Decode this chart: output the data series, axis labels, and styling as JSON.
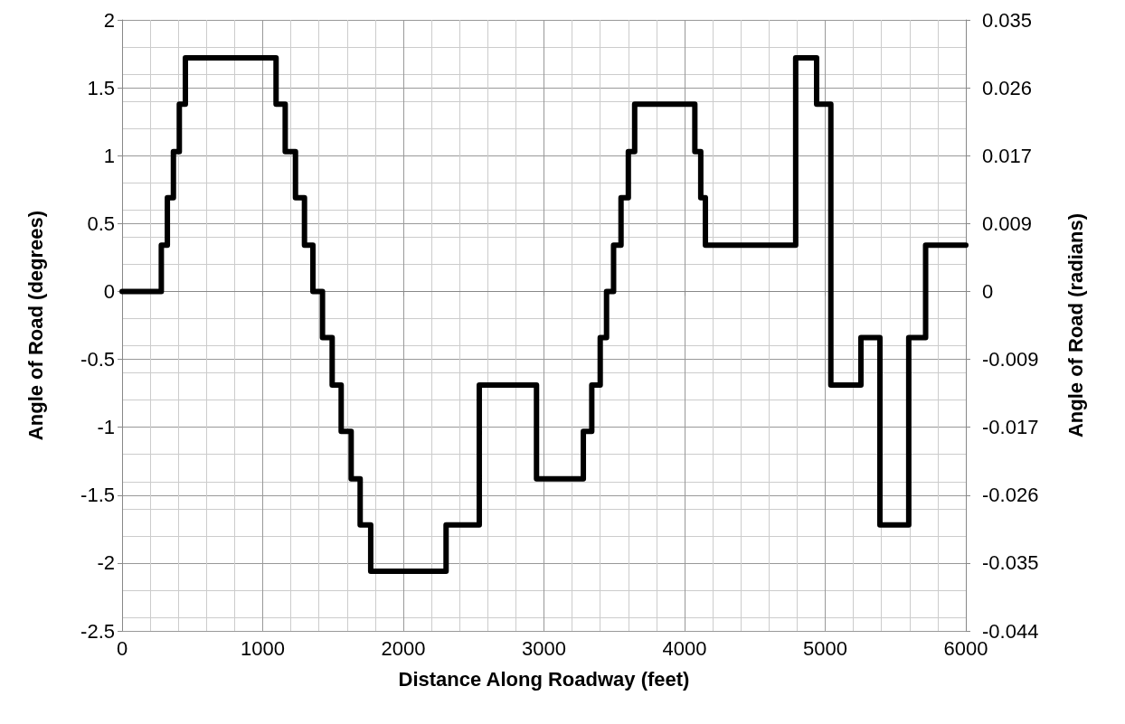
{
  "chart_data": {
    "type": "step",
    "xlabel": "Distance Along Roadway (feet)",
    "ylabel": "Angle of Road (degrees)",
    "y2label": "Angle of Road (radians)",
    "series": [
      {
        "color": "#000000",
        "x": [
          0,
          279,
          322,
          365,
          407,
          450,
          1095,
          1160,
          1233,
          1297,
          1357,
          1425,
          1494,
          1558,
          1629,
          1693,
          1768,
          2304,
          2540,
          2947,
          3280,
          3340,
          3400,
          3445,
          3495,
          3548,
          3600,
          3645,
          4073,
          4115,
          4148,
          4790,
          4939,
          5040,
          5254,
          5389,
          5594,
          5714,
          6000
        ],
        "values": [
          0,
          0.34,
          0.69,
          1.03,
          1.38,
          1.72,
          1.38,
          1.03,
          0.69,
          0.34,
          0,
          -0.34,
          -0.69,
          -1.03,
          -1.38,
          -1.72,
          -2.06,
          -1.72,
          -0.69,
          -1.38,
          -1.03,
          -0.69,
          -0.34,
          0,
          0.34,
          0.69,
          1.03,
          1.38,
          1.03,
          0.69,
          0.34,
          1.72,
          1.38,
          -0.69,
          -0.34,
          -1.72,
          -0.34,
          0.34,
          0.34
        ]
      }
    ],
    "xlim": [
      0,
      6000
    ],
    "xticks": [
      0,
      1000,
      2000,
      3000,
      4000,
      5000,
      6000
    ],
    "ylim": [
      -2.5,
      2
    ],
    "yticks": [
      -2.5,
      -2,
      -1.5,
      -1,
      -0.5,
      0,
      0.5,
      1,
      1.5,
      2
    ],
    "y2lim": [
      -0.04363,
      0.03491
    ],
    "y2ticks": [
      {
        "value": -0.04363,
        "label": "-0.044"
      },
      {
        "value": -0.03491,
        "label": "-0.035"
      },
      {
        "value": -0.02618,
        "label": "-0.026"
      },
      {
        "value": -0.01745,
        "label": "-0.017"
      },
      {
        "value": -0.00873,
        "label": "-0.009"
      },
      0,
      {
        "value": 0.00873,
        "label": "0.009"
      },
      {
        "value": 0.01745,
        "label": "0.017"
      },
      {
        "value": 0.02618,
        "label": "0.026"
      },
      {
        "value": 0.03491,
        "label": "0.035"
      }
    ],
    "grid": true,
    "marker": "none",
    "line_style": "solid"
  }
}
